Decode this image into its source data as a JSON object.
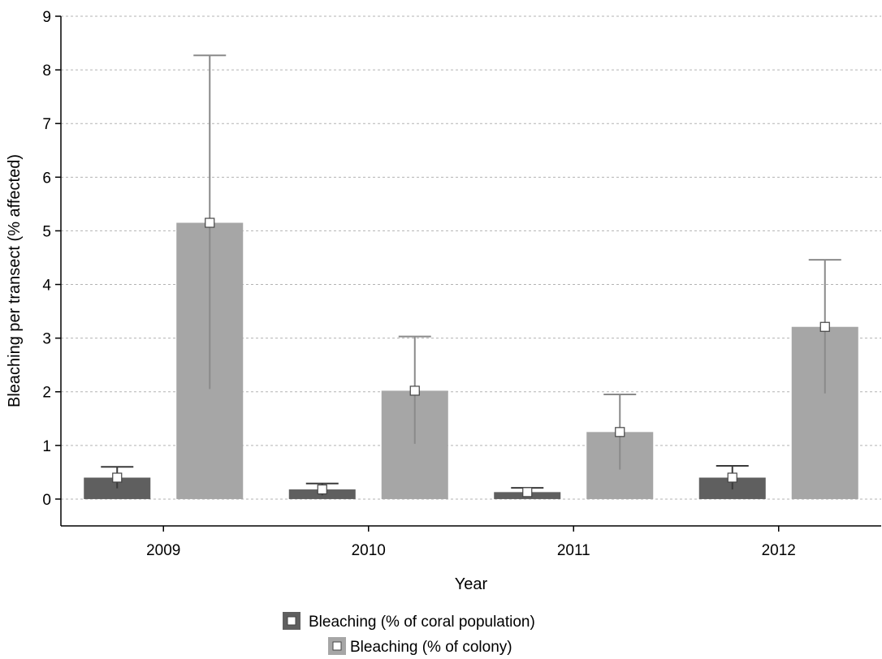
{
  "chart_data": {
    "type": "bar",
    "xlabel": "Year",
    "ylabel": "Bleaching per transect (% affected)",
    "ylim": [
      -0.5,
      9
    ],
    "yticks": [
      0,
      1,
      2,
      3,
      4,
      5,
      6,
      7,
      8,
      9
    ],
    "grid": "horizontal dashed",
    "legend_position": "bottom-center",
    "categories": [
      "2009",
      "2010",
      "2011",
      "2012"
    ],
    "series": [
      {
        "name": "Bleaching (% of coral population)",
        "color": "#5f5f5f",
        "values": [
          0.4,
          0.18,
          0.13,
          0.4
        ],
        "error_upper": [
          0.6,
          0.29,
          0.21,
          0.62
        ],
        "error_lower": [
          0.2,
          0.07,
          0.05,
          0.18
        ]
      },
      {
        "name": "Bleaching (% of colony)",
        "color": "#a6a6a6",
        "values": [
          5.15,
          2.02,
          1.25,
          3.21
        ],
        "error_upper": [
          8.27,
          3.03,
          1.95,
          4.46
        ],
        "error_lower": [
          2.05,
          1.03,
          0.55,
          1.97
        ]
      }
    ]
  }
}
